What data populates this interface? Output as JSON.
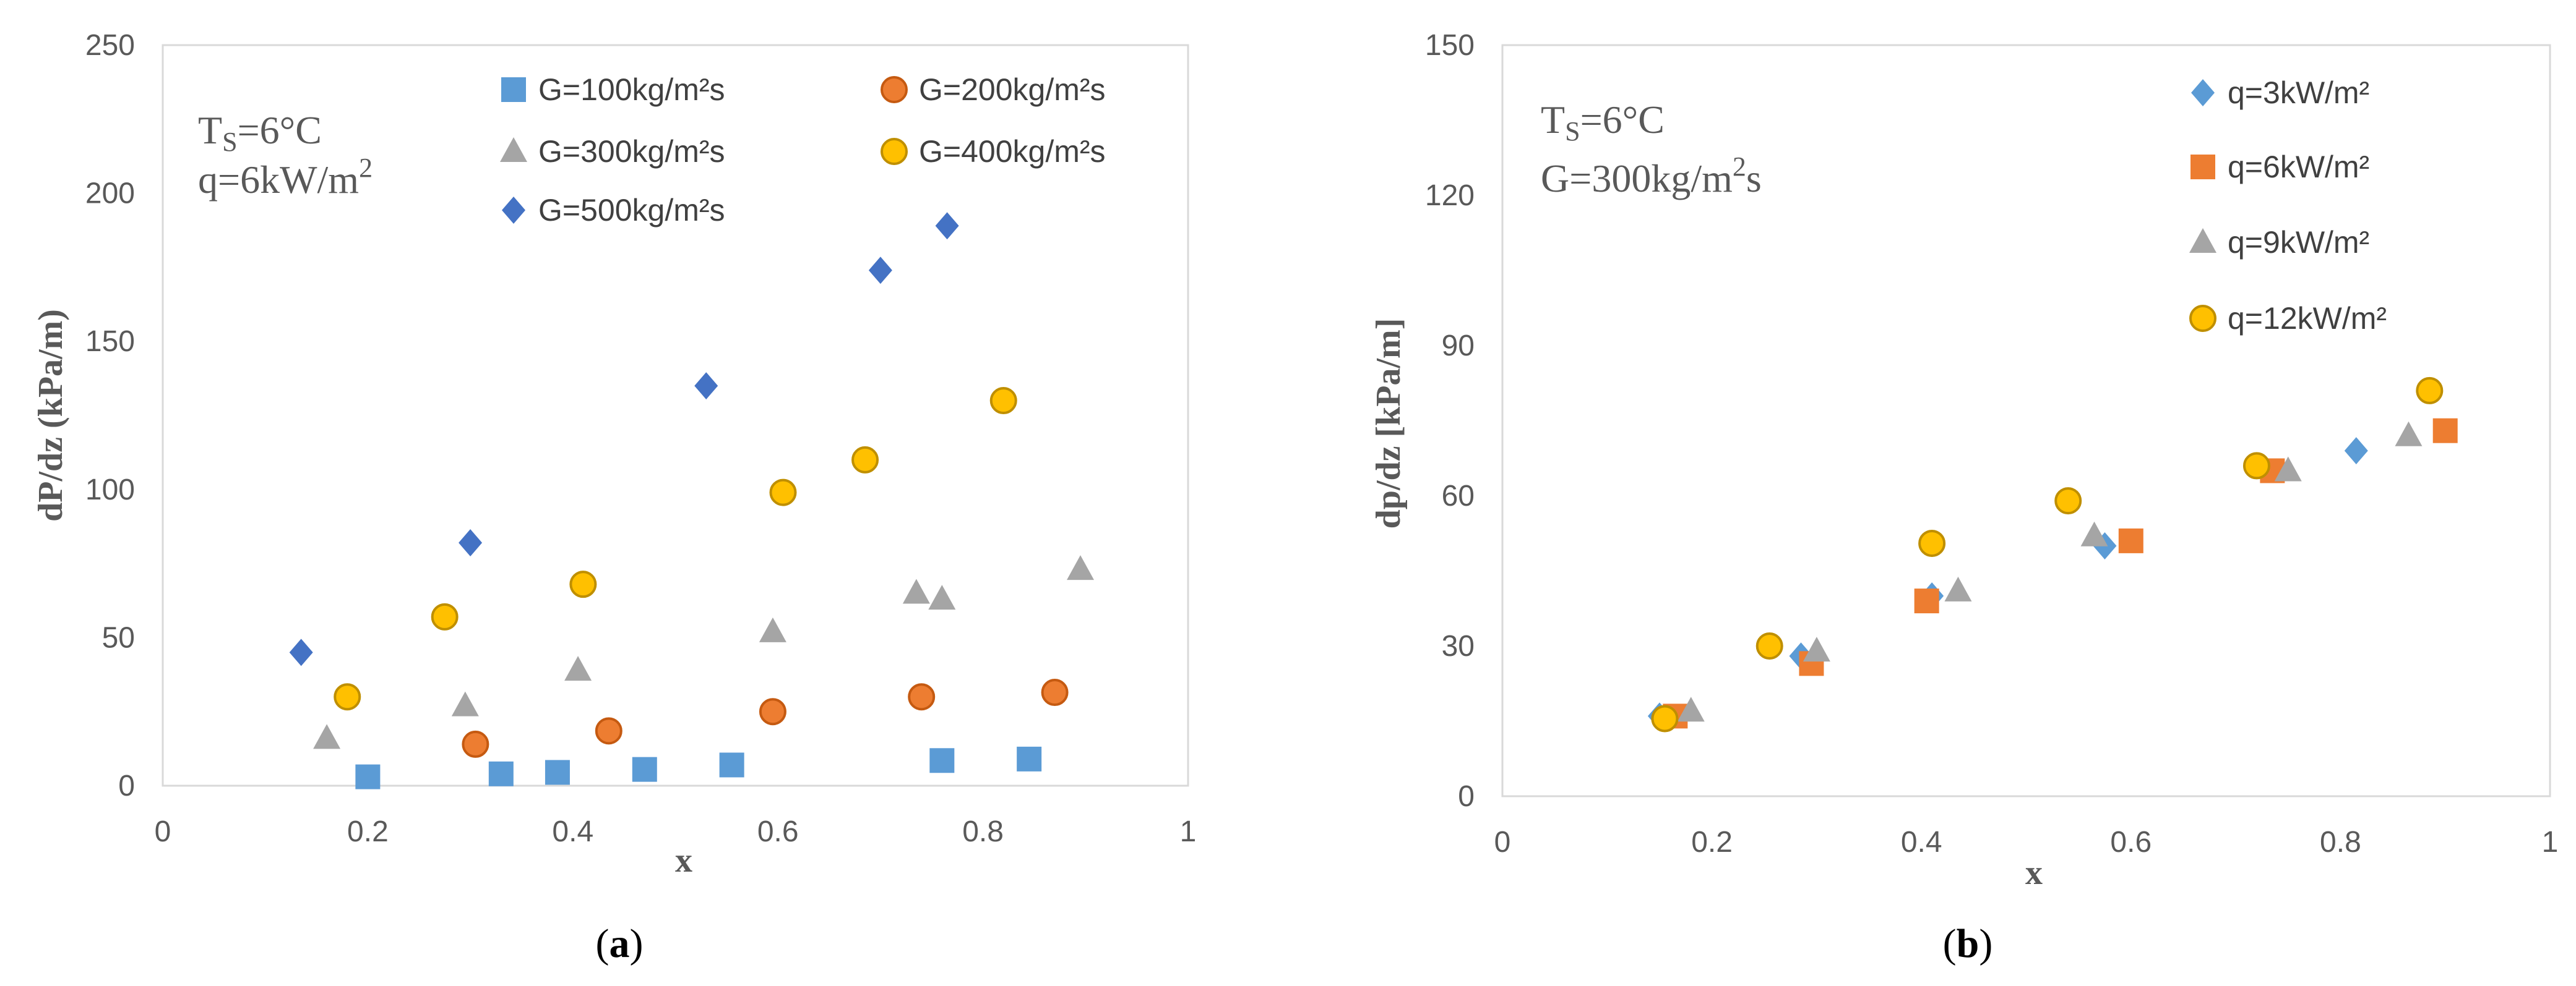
{
  "chart_data": [
    {
      "type": "scatter",
      "panel_label": "a",
      "xlabel": "x",
      "ylabel": "dP/dz (kPa/m)",
      "xlim": [
        0,
        1
      ],
      "ylim": [
        0,
        250
      ],
      "xticks": [
        0,
        0.2,
        0.4,
        0.6,
        0.8,
        1
      ],
      "xtick_labels": [
        "0",
        "0.2",
        "0.4",
        "0.6",
        "0.8",
        "1"
      ],
      "yticks": [
        0,
        50,
        100,
        150,
        200,
        250
      ],
      "ytick_labels": [
        "0",
        "50",
        "100",
        "150",
        "200",
        "250"
      ],
      "annotation": {
        "ts_main": "T",
        "ts_sub": "S",
        "ts_value": "=6°C",
        "line2": "q=6kW/m",
        "line2_sup": "2"
      },
      "series": [
        {
          "name": "G=100kg/m²s",
          "marker": "square",
          "color": "#5B9BD5",
          "x": [
            0.2,
            0.33,
            0.385,
            0.47,
            0.555,
            0.76,
            0.845
          ],
          "y": [
            3,
            4,
            4.5,
            5.5,
            7,
            8.5,
            9
          ]
        },
        {
          "name": "G=200kg/m²s",
          "marker": "circle",
          "color": "#ED7D31",
          "x": [
            0.305,
            0.435,
            0.595,
            0.74,
            0.87
          ],
          "y": [
            14,
            18.5,
            25,
            30,
            31.5
          ]
        },
        {
          "name": "G=300kg/m²s",
          "marker": "triangle",
          "color": "#A5A5A5",
          "x": [
            0.16,
            0.295,
            0.405,
            0.595,
            0.735,
            0.76,
            0.895
          ],
          "y": [
            16,
            27,
            39,
            52,
            65,
            63,
            73
          ]
        },
        {
          "name": "G=400kg/m²s",
          "marker": "circle",
          "color": "#FFC000",
          "x": [
            0.18,
            0.275,
            0.41,
            0.605,
            0.685,
            0.82
          ],
          "y": [
            30,
            57,
            68,
            99,
            110,
            130
          ]
        },
        {
          "name": "G=500kg/m²s",
          "marker": "diamond",
          "color": "#4472C4",
          "x": [
            0.135,
            0.3,
            0.53,
            0.7,
            0.765
          ],
          "y": [
            45,
            82,
            135,
            174,
            189
          ]
        }
      ]
    },
    {
      "type": "scatter",
      "panel_label": "b",
      "xlabel": "x",
      "ylabel": "dp/dz [kPa/m]",
      "xlim": [
        0,
        1
      ],
      "ylim": [
        0,
        150
      ],
      "xticks": [
        0,
        0.2,
        0.4,
        0.6,
        0.8,
        1
      ],
      "xtick_labels": [
        "0",
        "0.2",
        "0.4",
        "0.6",
        "0.8",
        "1"
      ],
      "yticks": [
        0,
        30,
        60,
        90,
        120,
        150
      ],
      "ytick_labels": [
        "0",
        "30",
        "60",
        "90",
        "120",
        "150"
      ],
      "annotation": {
        "ts_main": "T",
        "ts_sub": "S",
        "ts_value": "=6°C",
        "line2": "G=300kg/m",
        "line2_sup": "2",
        "line2_tail": "s"
      },
      "series": [
        {
          "name": "q=3kW/m²",
          "marker": "diamond",
          "color": "#5B9BD5",
          "x": [
            0.15,
            0.285,
            0.41,
            0.575,
            0.815
          ],
          "y": [
            16,
            28,
            40,
            50,
            69
          ]
        },
        {
          "name": "q=6kW/m²",
          "marker": "square",
          "color": "#ED7D31",
          "x": [
            0.165,
            0.295,
            0.405,
            0.6,
            0.735,
            0.9
          ],
          "y": [
            16,
            26.5,
            39,
            51,
            65,
            73
          ]
        },
        {
          "name": "q=9kW/m²",
          "marker": "triangle",
          "color": "#A5A5A5",
          "x": [
            0.18,
            0.3,
            0.435,
            0.565,
            0.75,
            0.865
          ],
          "y": [
            17,
            29,
            41,
            52,
            65,
            72
          ]
        },
        {
          "name": "q=12kW/m²",
          "marker": "circle",
          "color": "#FFC000",
          "x": [
            0.155,
            0.255,
            0.41,
            0.54,
            0.72,
            0.885
          ],
          "y": [
            15.5,
            30,
            50.5,
            59,
            66,
            81
          ]
        }
      ]
    }
  ]
}
